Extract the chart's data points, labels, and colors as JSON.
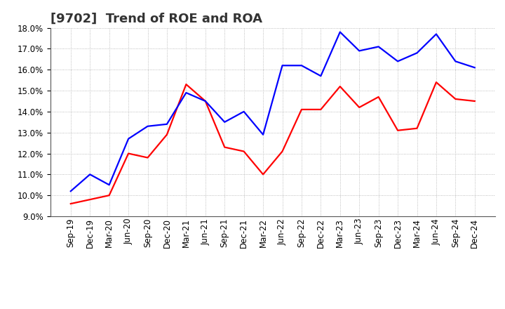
{
  "title": "[9702]  Trend of ROE and ROA",
  "x_labels": [
    "Sep-19",
    "Dec-19",
    "Mar-20",
    "Jun-20",
    "Sep-20",
    "Dec-20",
    "Mar-21",
    "Jun-21",
    "Sep-21",
    "Dec-21",
    "Mar-22",
    "Jun-22",
    "Sep-22",
    "Dec-22",
    "Mar-23",
    "Jun-23",
    "Sep-23",
    "Dec-23",
    "Mar-24",
    "Jun-24",
    "Sep-24",
    "Dec-24"
  ],
  "ROE": [
    9.6,
    9.8,
    10.0,
    12.0,
    11.8,
    12.9,
    15.3,
    14.5,
    12.3,
    12.1,
    11.0,
    12.1,
    14.1,
    14.1,
    15.2,
    14.2,
    14.7,
    13.1,
    13.2,
    15.4,
    14.6,
    14.5
  ],
  "ROA": [
    10.2,
    11.0,
    10.5,
    12.7,
    13.3,
    13.4,
    14.9,
    14.5,
    13.5,
    14.0,
    12.9,
    16.2,
    16.2,
    15.7,
    17.8,
    16.9,
    17.1,
    16.4,
    16.8,
    17.7,
    16.4,
    16.1
  ],
  "ROE_color": "#ff0000",
  "ROA_color": "#0000ff",
  "ylim": [
    9.0,
    18.0
  ],
  "yticks": [
    9.0,
    10.0,
    11.0,
    12.0,
    13.0,
    14.0,
    15.0,
    16.0,
    17.0,
    18.0
  ],
  "background_color": "#ffffff",
  "grid_color": "#aaaaaa",
  "title_fontsize": 13,
  "axis_fontsize": 8.5,
  "legend_fontsize": 10,
  "line_width": 1.6
}
